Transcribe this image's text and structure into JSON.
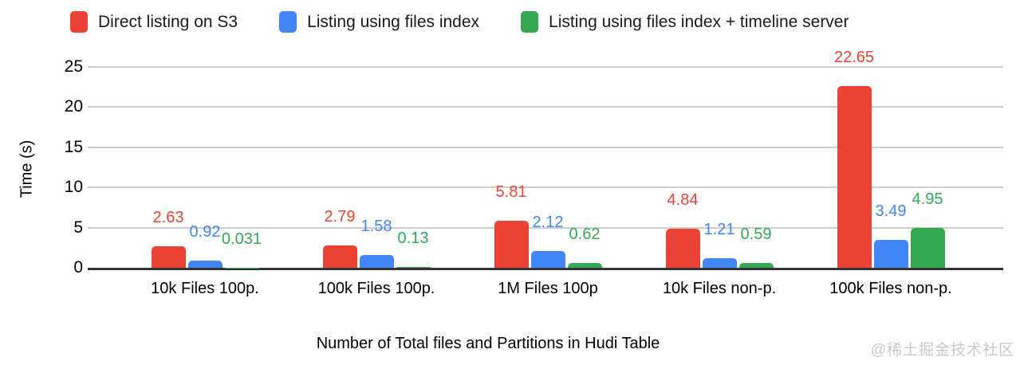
{
  "chart_data": {
    "type": "bar",
    "categories": [
      "10k Files 100p.",
      "100k Files 100p.",
      "1M Files 100p",
      "10k Files non-p.",
      "100k Files non-p."
    ],
    "series": [
      {
        "name": "Direct listing on S3",
        "color": "#EA4335",
        "values": [
          2.63,
          2.79,
          5.81,
          4.84,
          22.65
        ]
      },
      {
        "name": "Listing using files index",
        "color": "#4285F4",
        "values": [
          0.92,
          1.58,
          2.12,
          1.21,
          3.49
        ]
      },
      {
        "name": "Listing using files index + timeline server",
        "color": "#34A853",
        "values": [
          0.031,
          0.13,
          0.62,
          0.59,
          4.95
        ]
      }
    ],
    "title": "",
    "xlabel": "Number of Total files and Partitions in Hudi Table",
    "ylabel": "Time (s)",
    "ylim": [
      0,
      25
    ],
    "yticks": [
      0,
      5,
      10,
      15,
      20,
      25
    ],
    "grid": true,
    "legend_position": "top",
    "annotations": "values shown above each bar in series color"
  },
  "watermark": "@稀土掘金技术社区",
  "colors": {
    "gridline": "#cccccc",
    "baseline": "#333333",
    "axis_text": "#000000",
    "watermark_text": "#c9c9c9"
  }
}
